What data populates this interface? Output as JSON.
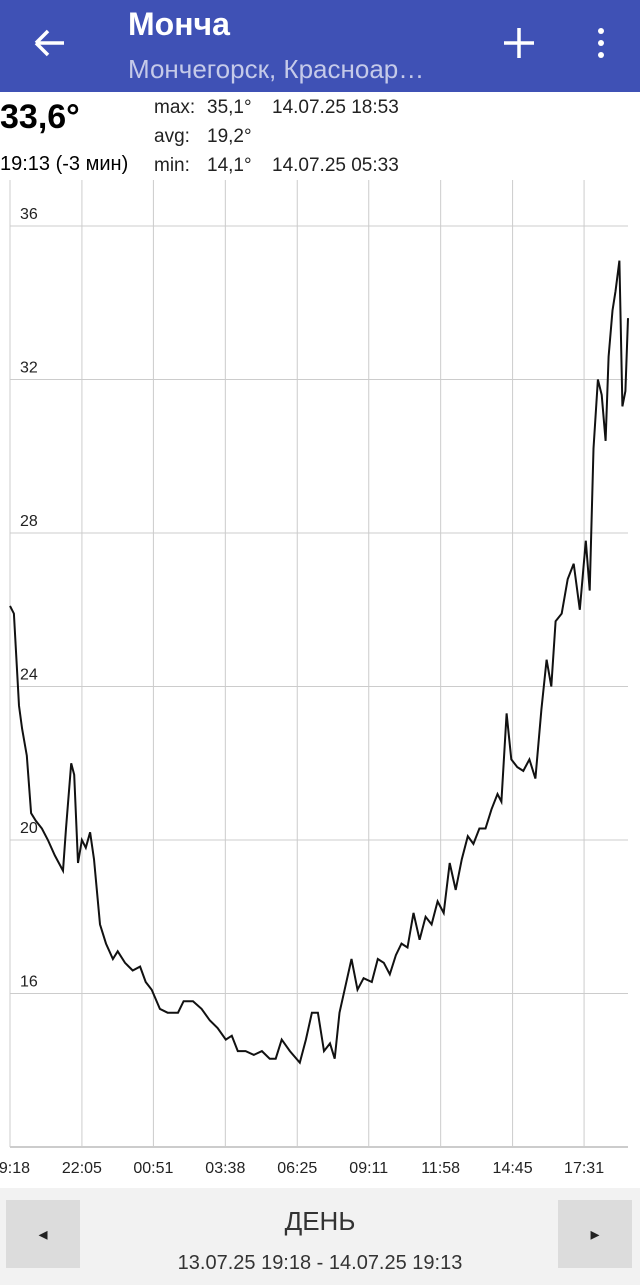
{
  "header": {
    "title": "Монча",
    "subtitle": "Мончегорск, Красноар…"
  },
  "current": {
    "temp": "33,6°",
    "time": "19:13 (-3 мин)"
  },
  "stats": [
    [
      "max:",
      "35,1°",
      "14.07.25 18:53"
    ],
    [
      "avg:",
      "19,2°"
    ],
    [
      "min:",
      "14,1°",
      "14.07.25 05:33"
    ]
  ],
  "chart_data": {
    "type": "line",
    "color": "#111111",
    "grid": true,
    "x": [
      "19:18",
      "19:27",
      "19:39",
      "19:46",
      "19:57",
      "20:07",
      "20:18",
      "20:32",
      "20:46",
      "21:02",
      "21:21",
      "21:28",
      "21:40",
      "21:47",
      "21:56",
      "22:05",
      "22:14",
      "22:24",
      "22:33",
      "22:47",
      "23:01",
      "23:17",
      "23:28",
      "23:45",
      "00:03",
      "00:20",
      "00:33",
      "00:47",
      "01:06",
      "01:24",
      "01:48",
      "02:01",
      "02:23",
      "02:43",
      "03:02",
      "03:20",
      "03:39",
      "03:53",
      "04:07",
      "04:25",
      "04:44",
      "05:03",
      "05:21",
      "05:35",
      "05:49",
      "06:08",
      "06:31",
      "06:45",
      "06:59",
      "07:13",
      "07:27",
      "07:41",
      "07:52",
      "08:03",
      "08:17",
      "08:31",
      "08:45",
      "08:59",
      "09:18",
      "09:32",
      "09:46",
      "10:00",
      "10:14",
      "10:27",
      "10:41",
      "10:55",
      "11:09",
      "11:23",
      "11:37",
      "11:51",
      "12:05",
      "12:19",
      "12:33",
      "12:47",
      "13:01",
      "13:14",
      "13:28",
      "13:42",
      "13:56",
      "14:10",
      "14:19",
      "14:31",
      "14:42",
      "14:56",
      "15:10",
      "15:24",
      "15:38",
      "15:52",
      "16:04",
      "16:15",
      "16:25",
      "16:39",
      "16:53",
      "17:07",
      "17:21",
      "17:35",
      "17:44",
      "17:53",
      "18:03",
      "18:12",
      "18:21",
      "18:28",
      "18:37",
      "18:44",
      "18:53",
      "19:00",
      "19:07",
      "19:13"
    ],
    "values": [
      26.1,
      25.9,
      23.5,
      22.9,
      22.2,
      20.7,
      20.5,
      20.3,
      20.0,
      19.6,
      19.2,
      20.3,
      22.0,
      21.7,
      19.4,
      20.0,
      19.8,
      20.2,
      19.5,
      17.8,
      17.3,
      16.9,
      17.1,
      16.8,
      16.6,
      16.7,
      16.3,
      16.1,
      15.6,
      15.5,
      15.5,
      15.8,
      15.8,
      15.6,
      15.3,
      15.1,
      14.8,
      14.9,
      14.5,
      14.5,
      14.4,
      14.5,
      14.3,
      14.3,
      14.8,
      14.5,
      14.2,
      14.8,
      15.5,
      15.5,
      14.5,
      14.7,
      14.3,
      15.5,
      16.2,
      16.9,
      16.1,
      16.4,
      16.3,
      16.9,
      16.8,
      16.5,
      17.0,
      17.3,
      17.2,
      18.1,
      17.4,
      18.0,
      17.8,
      18.4,
      18.1,
      19.4,
      18.7,
      19.5,
      20.1,
      19.9,
      20.3,
      20.3,
      20.8,
      21.2,
      21.0,
      23.3,
      22.1,
      21.9,
      21.8,
      22.1,
      21.6,
      23.4,
      24.7,
      24.0,
      25.7,
      25.9,
      26.8,
      27.2,
      26.0,
      27.8,
      26.5,
      30.2,
      32.0,
      31.6,
      30.4,
      32.6,
      33.8,
      34.3,
      35.1,
      31.3,
      31.7,
      33.6
    ],
    "xlim": [
      "19:18",
      "19:13"
    ],
    "xticks": [
      "19:18",
      "22:05",
      "00:51",
      "03:38",
      "06:25",
      "09:11",
      "11:58",
      "14:45",
      "17:31"
    ],
    "ylim": [
      12,
      37.2
    ],
    "yticks": [
      16,
      20,
      24,
      28,
      32,
      36
    ]
  },
  "footer": {
    "prev": "◂",
    "next": "▸",
    "period": "ДЕНЬ",
    "range": "13.07.25 19:18 - 14.07.25 19:13"
  }
}
